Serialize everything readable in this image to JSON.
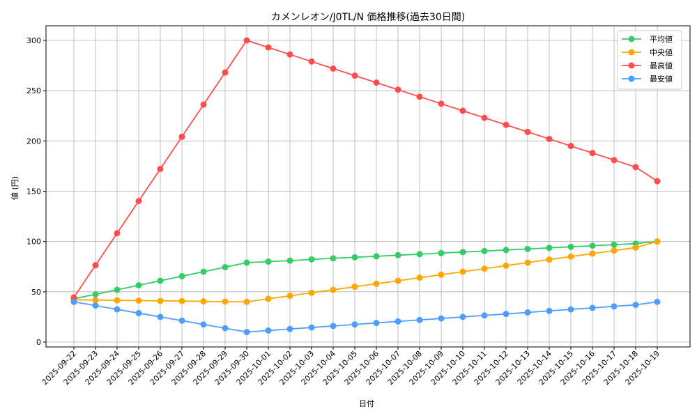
{
  "chart_data": {
    "type": "line",
    "title": "カメンレオン/J0TL/N 価格推移(過去30日間)",
    "xlabel": "日付",
    "ylabel": "値 (円)",
    "ylim": [
      -8,
      315
    ],
    "yticks": [
      0,
      50,
      100,
      150,
      200,
      250,
      300
    ],
    "grid": true,
    "legend_position": "upper right",
    "categories": [
      "2025-09-22",
      "2025-09-23",
      "2025-09-24",
      "2025-09-25",
      "2025-09-26",
      "2025-09-27",
      "2025-09-28",
      "2025-09-29",
      "2025-09-30",
      "2025-10-01",
      "2025-10-02",
      "2025-10-03",
      "2025-10-04",
      "2025-10-05",
      "2025-10-06",
      "2025-10-07",
      "2025-10-08",
      "2025-10-09",
      "2025-10-10",
      "2025-10-11",
      "2025-10-12",
      "2025-10-13",
      "2025-10-14",
      "2025-10-15",
      "2025-10-16",
      "2025-10-17",
      "2025-10-18",
      "2025-10-19"
    ],
    "series": [
      {
        "name": "平均値",
        "color": "#33cc66",
        "values": [
          43,
          47.5,
          52,
          56.5,
          61,
          65.5,
          70,
          74.5,
          79,
          80,
          81,
          82.2,
          83.3,
          84.3,
          85.3,
          86.4,
          87.4,
          88.5,
          89.5,
          90.5,
          91.6,
          92.6,
          93.7,
          94.7,
          95.8,
          96.8,
          97.9,
          100
        ]
      },
      {
        "name": "中央値",
        "color": "#ffa600",
        "values": [
          42,
          41.8,
          41.5,
          41.2,
          41,
          40.8,
          40.5,
          40.2,
          40,
          43,
          46,
          49,
          52,
          55,
          58,
          61,
          64,
          67,
          70,
          73,
          76,
          79,
          82,
          85,
          88,
          91,
          94,
          100
        ]
      },
      {
        "name": "最高値",
        "color": "#ff4d4d",
        "values": [
          44.4,
          76.4,
          108.3,
          140.3,
          172.2,
          204.2,
          236.1,
          268.1,
          300,
          293,
          286,
          279,
          272,
          265,
          258,
          251,
          244,
          237,
          230,
          223,
          216,
          209,
          202,
          195,
          188,
          181,
          174,
          160
        ]
      },
      {
        "name": "最安値",
        "color": "#4d9eff",
        "values": [
          40,
          36.3,
          32.5,
          28.8,
          25,
          21.3,
          17.5,
          13.8,
          10,
          11.5,
          13,
          14.5,
          16,
          17.5,
          19,
          20.5,
          22,
          23.5,
          25,
          26.5,
          28,
          29.5,
          31,
          32.5,
          34,
          35.5,
          37,
          40
        ]
      }
    ]
  }
}
